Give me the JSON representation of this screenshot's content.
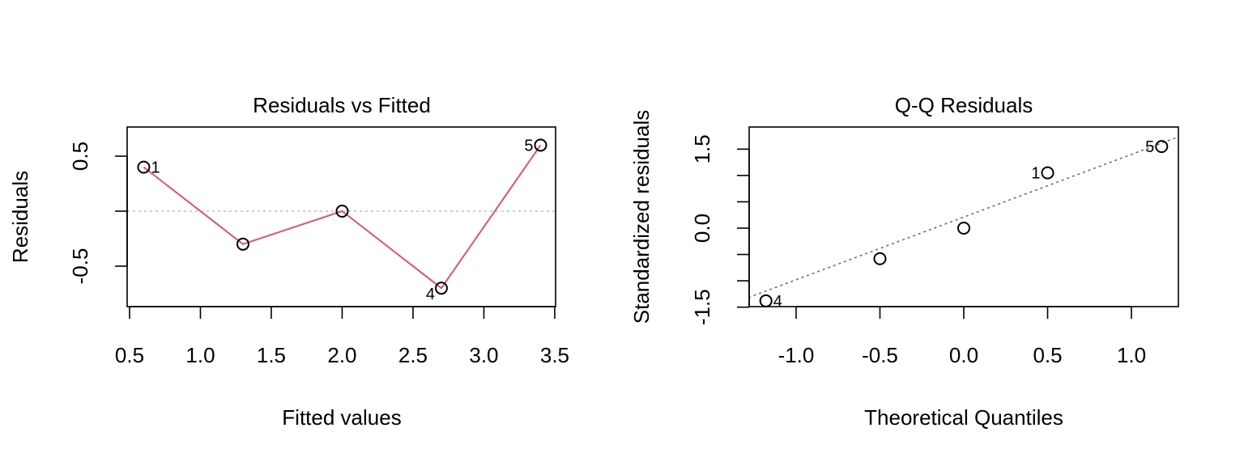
{
  "chart_data": [
    {
      "type": "scatter",
      "title": "Residuals vs Fitted",
      "xlabel": "Fitted values",
      "ylabel": "Residuals",
      "xlim": [
        0.483,
        3.506
      ],
      "ylim": [
        -0.868,
        0.765
      ],
      "xticks": [
        0.5,
        1.0,
        1.5,
        2.0,
        2.5,
        3.0,
        3.5
      ],
      "xtick_labels": [
        "0.5",
        "1.0",
        "1.5",
        "2.0",
        "2.5",
        "3.0",
        "3.5"
      ],
      "yticks": [
        -0.5,
        0,
        0.5
      ],
      "ytick_labels": [
        "-0.5",
        "",
        "0.5"
      ],
      "points": [
        {
          "x": 0.6,
          "y": 0.4,
          "label": "1",
          "pos": "right"
        },
        {
          "x": 1.3,
          "y": -0.3,
          "label": "",
          "pos": "none"
        },
        {
          "x": 2.0,
          "y": 0.0,
          "label": "",
          "pos": "none"
        },
        {
          "x": 2.7,
          "y": -0.7,
          "label": "4",
          "pos": "left-below"
        },
        {
          "x": 3.4,
          "y": 0.6,
          "label": "5",
          "pos": "left"
        }
      ],
      "smoother_color": "#DF536B",
      "reference_line": {
        "y": 0,
        "color": "#BEBEBE",
        "style": "dotted"
      }
    },
    {
      "type": "scatter",
      "title": "Q-Q Residuals",
      "xlabel": "Theoretical Quantiles",
      "ylabel": "Standardized residuals",
      "xlim": [
        -1.28,
        1.28
      ],
      "ylim": [
        -1.49,
        1.92
      ],
      "xticks": [
        -1.0,
        -0.5,
        0.0,
        0.5,
        1.0
      ],
      "xtick_labels": [
        "-1.0",
        "-0.5",
        "0.0",
        "0.5",
        "1.0"
      ],
      "yticks": [
        -1.5,
        -1.0,
        -0.5,
        0.0,
        0.5,
        1.0,
        1.5
      ],
      "ytick_labels": [
        "-1.5",
        "",
        "",
        "0.0",
        "",
        "",
        "1.5"
      ],
      "points": [
        {
          "x": -1.18,
          "y": -1.38,
          "label": "4",
          "pos": "right"
        },
        {
          "x": -0.5,
          "y": -0.58,
          "label": "",
          "pos": "none"
        },
        {
          "x": 0.0,
          "y": 0.0,
          "label": "",
          "pos": "none"
        },
        {
          "x": 0.5,
          "y": 1.05,
          "label": "1",
          "pos": "left"
        },
        {
          "x": 1.18,
          "y": 1.55,
          "label": "5",
          "pos": "left"
        }
      ],
      "qq_line": {
        "slope": 1.19,
        "intercept": 0.21,
        "color": "#6E6E6E",
        "style": "dotted"
      }
    }
  ]
}
